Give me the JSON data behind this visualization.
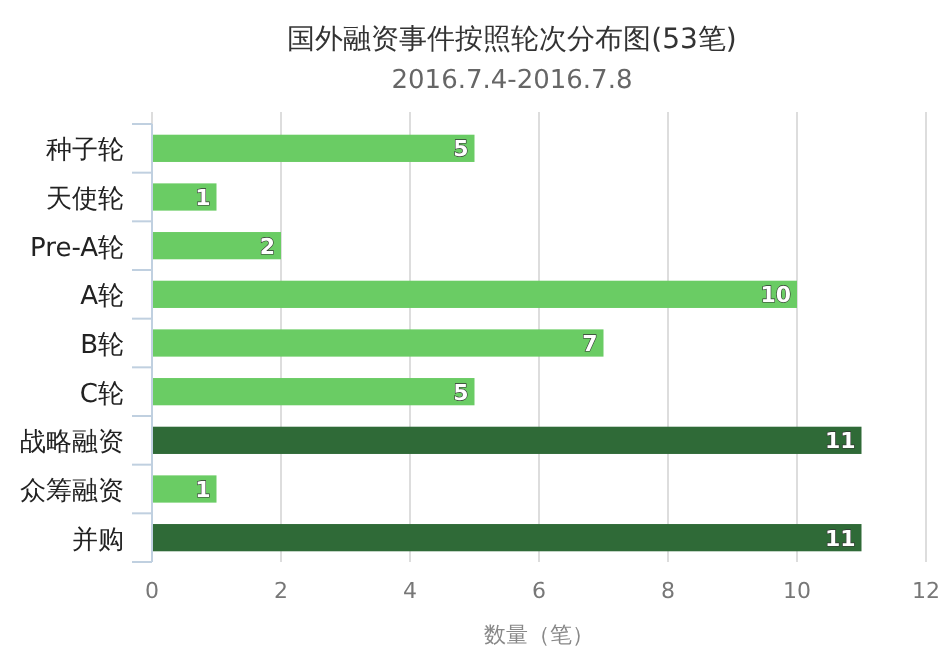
{
  "chart_data": {
    "type": "bar",
    "orientation": "horizontal",
    "title": "国外融资事件按照轮次分布图(53笔)",
    "subtitle": "2016.7.4-2016.7.8",
    "xlabel": "数量（笔）",
    "categories": [
      "种子轮",
      "天使轮",
      "Pre-A轮",
      "A轮",
      "B轮",
      "C轮",
      "战略融资",
      "众筹融资",
      "并购"
    ],
    "values": [
      5,
      1,
      2,
      10,
      7,
      5,
      11,
      1,
      11
    ],
    "colors": [
      "#6acc64",
      "#6acc64",
      "#6acc64",
      "#6acc64",
      "#6acc64",
      "#6acc64",
      "#2f6a37",
      "#6acc64",
      "#2f6a37"
    ],
    "xlim": [
      0,
      12
    ],
    "xticks": [
      0,
      2,
      4,
      6,
      8,
      10,
      12
    ],
    "grid": "x",
    "data_labels": true
  }
}
